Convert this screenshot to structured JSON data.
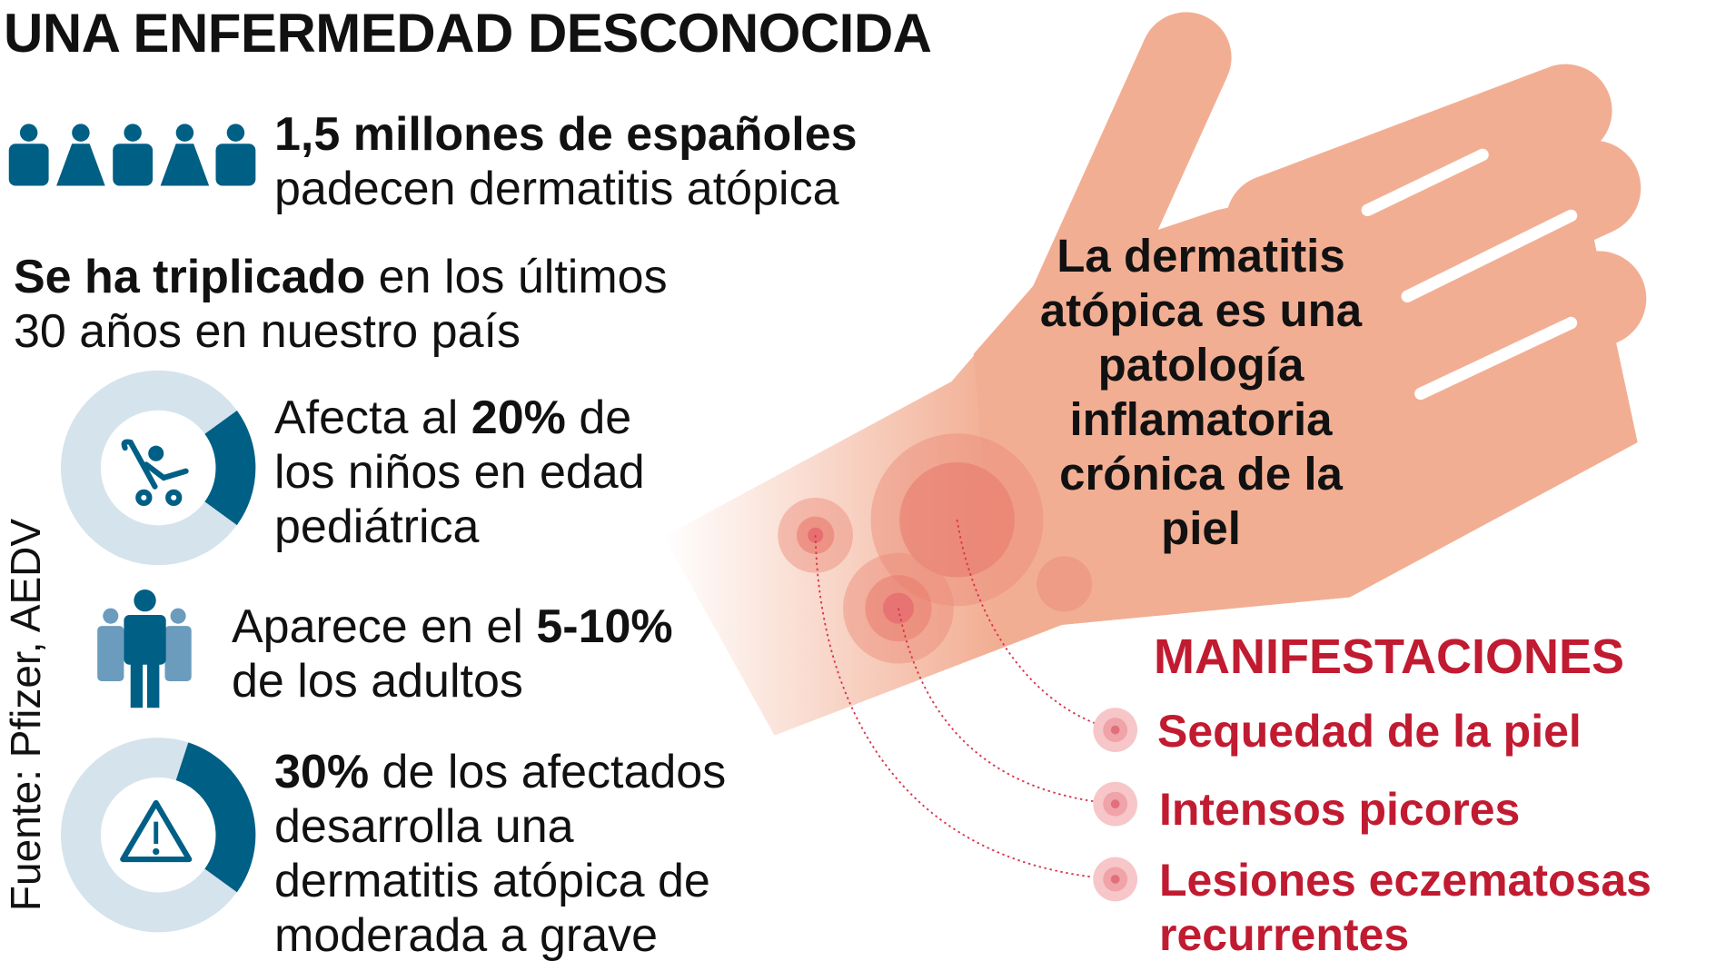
{
  "title": "UNA ENFERMEDAD DESCONOCIDA",
  "colors": {
    "dark_blue": "#005f85",
    "light_blue": "#d5e3ec",
    "mid_blue": "#6b9cbd",
    "skin": "#f2ae93",
    "red": "#c11b31"
  },
  "stat_population": {
    "icon": "people-icon",
    "line1": "1,5 millones de españoles",
    "line2": "padecen dermatitis atópica"
  },
  "stat_growth": {
    "bold": "Se ha triplicado",
    "rest1": " en los últimos",
    "line2": "30 años en nuestro país"
  },
  "stat_children": {
    "icon": "stroller-icon",
    "percent": 20,
    "pre": "Afecta al ",
    "bold": "20%",
    "post": " de",
    "line2": "los niños en edad",
    "line3": "pediátrica"
  },
  "stat_adults": {
    "icon": "adults-icon",
    "pre": "Aparece en el ",
    "bold": "5-10%",
    "line2": "de los adultos"
  },
  "stat_severe": {
    "icon": "warning-icon",
    "percent": 30,
    "bold": "30%",
    "rest": " de los afectados",
    "line2": "desarrolla una",
    "line3": "dermatitis atópica de",
    "line4": "moderada a grave"
  },
  "hand_text": [
    "La dermatitis",
    "atópica es una",
    "patología",
    "inflamatoria",
    "crónica de la",
    "piel"
  ],
  "manifestations": {
    "title": "MANIFESTACIONES",
    "items": [
      "Sequedad de la piel",
      "Intensos picores",
      "Lesiones eczematosas",
      "recurrentes"
    ]
  },
  "source": "Fuente: Pfizer, AEDV"
}
